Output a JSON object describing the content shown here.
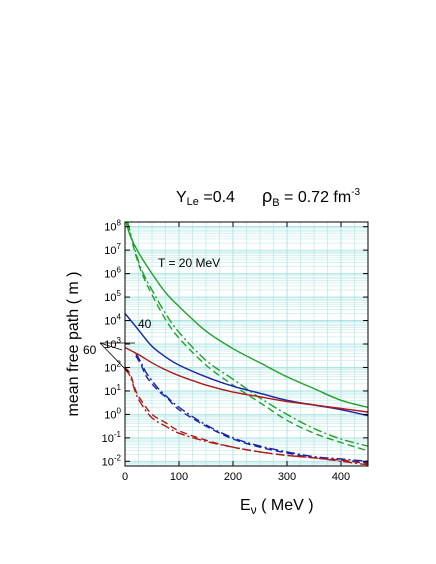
{
  "chart_data": {
    "type": "line",
    "title_parts": {
      "ye_symbol": "Y",
      "ye_sub": "Le",
      "ye_value": " =0.4",
      "rho_symbol": "ρ",
      "rho_sub": "B",
      "rho_value": " = 0.72 fm",
      "rho_exp": "-3"
    },
    "xlabel": {
      "symbol": "E",
      "sub": "ν",
      "unit": " ( MeV )"
    },
    "ylabel": "mean free path ( m )",
    "xlim": [
      0,
      450
    ],
    "ylim_log10": [
      -2.2,
      8.2
    ],
    "y_scale": "log",
    "grid": true,
    "x_ticks": [
      {
        "value": 0,
        "label": "0"
      },
      {
        "value": 100,
        "label": "100"
      },
      {
        "value": 200,
        "label": "200"
      },
      {
        "value": 300,
        "label": "300"
      },
      {
        "value": 400,
        "label": "400"
      }
    ],
    "y_ticks": [
      {
        "exp": -2,
        "base": "10",
        "sup": "-2"
      },
      {
        "exp": -1,
        "base": "10",
        "sup": "-1"
      },
      {
        "exp": 0,
        "base": "10",
        "sup": "0"
      },
      {
        "exp": 1,
        "base": "10",
        "sup": "1"
      },
      {
        "exp": 2,
        "base": "10",
        "sup": "2"
      },
      {
        "exp": 3,
        "base": "10",
        "sup": "3"
      },
      {
        "exp": 4,
        "base": "10",
        "sup": "4"
      },
      {
        "exp": 5,
        "base": "10",
        "sup": "5"
      },
      {
        "exp": 6,
        "base": "10",
        "sup": "6"
      },
      {
        "exp": 7,
        "base": "10",
        "sup": "7"
      },
      {
        "exp": 8,
        "base": "10",
        "sup": "8"
      }
    ],
    "annotations": {
      "t20": "T = 20 MeV",
      "t40": "40",
      "t60": "60"
    },
    "colors": {
      "T20": "#22a02a",
      "T40": "#1a22a6",
      "T60": "#b01818",
      "grid": "#9fe0e0"
    },
    "series": [
      {
        "group": "T20",
        "style": "solid",
        "color": "#22a02a",
        "x": [
          2,
          10,
          25,
          50,
          75,
          100,
          150,
          200,
          250,
          300,
          350,
          400,
          450
        ],
        "log10_y": [
          8.2,
          7.6,
          6.9,
          6.0,
          5.2,
          4.6,
          3.55,
          2.8,
          2.2,
          1.6,
          1.1,
          0.6,
          0.3
        ]
      },
      {
        "group": "T20",
        "style": "dashed",
        "color": "#22a02a",
        "x": [
          5,
          15,
          30,
          50,
          75,
          100,
          150,
          200,
          250,
          300,
          350,
          400,
          450
        ],
        "log10_y": [
          8.2,
          7.2,
          6.1,
          5.1,
          4.05,
          3.25,
          2.1,
          1.25,
          0.5,
          -0.25,
          -0.8,
          -1.2,
          -1.55
        ]
      },
      {
        "group": "T20",
        "style": "dashdot",
        "color": "#22a02a",
        "x": [
          5,
          15,
          30,
          50,
          75,
          100,
          150,
          200,
          250,
          300,
          350,
          400,
          450
        ],
        "log10_y": [
          8.2,
          7.3,
          6.2,
          5.3,
          4.3,
          3.5,
          2.3,
          1.5,
          0.7,
          0.0,
          -0.6,
          -1.05,
          -1.35
        ]
      },
      {
        "group": "T40",
        "style": "solid",
        "color": "#1a22a6",
        "x": [
          0,
          25,
          50,
          75,
          100,
          150,
          200,
          250,
          300,
          350,
          400,
          450
        ],
        "log10_y": [
          4.3,
          3.6,
          2.9,
          2.45,
          2.1,
          1.6,
          1.2,
          0.9,
          0.6,
          0.4,
          0.2,
          -0.05
        ]
      },
      {
        "group": "T40",
        "style": "dashed",
        "color": "#1a22a6",
        "x": [
          20,
          30,
          40,
          60,
          80,
          100,
          150,
          200,
          250,
          300,
          350,
          400,
          450
        ],
        "log10_y": [
          2.5,
          2.1,
          1.6,
          1.05,
          0.65,
          0.2,
          -0.5,
          -1.05,
          -1.4,
          -1.65,
          -1.85,
          -1.95,
          -2.05
        ]
      },
      {
        "group": "T40",
        "style": "dashdot",
        "color": "#1a22a6",
        "x": [
          20,
          30,
          40,
          60,
          80,
          100,
          150,
          200,
          250,
          300,
          350,
          400,
          450
        ],
        "log10_y": [
          2.6,
          2.2,
          1.75,
          1.15,
          0.7,
          0.3,
          -0.45,
          -1.0,
          -1.35,
          -1.6,
          -1.8,
          -1.9,
          -2.0
        ]
      },
      {
        "group": "T60",
        "style": "solid",
        "color": "#b01818",
        "x": [
          0,
          25,
          50,
          75,
          100,
          150,
          200,
          250,
          300,
          350,
          400,
          450
        ],
        "log10_y": [
          2.85,
          2.55,
          2.2,
          1.9,
          1.65,
          1.25,
          0.95,
          0.75,
          0.55,
          0.4,
          0.25,
          0.1
        ]
      },
      {
        "group": "T60",
        "style": "dashed",
        "color": "#b01818",
        "x": [
          0,
          10,
          20,
          30,
          50,
          75,
          100,
          150,
          200,
          250,
          300,
          350,
          400,
          450
        ],
        "log10_y": [
          2.0,
          1.7,
          1.0,
          0.6,
          0.0,
          -0.35,
          -0.7,
          -1.1,
          -1.4,
          -1.6,
          -1.75,
          -1.85,
          -1.95,
          -2.1
        ]
      },
      {
        "group": "T60",
        "style": "dashdot",
        "color": "#b01818",
        "x": [
          0,
          10,
          20,
          30,
          50,
          75,
          100,
          150,
          200,
          250,
          300,
          350,
          400,
          450
        ],
        "log10_y": [
          1.95,
          1.6,
          0.9,
          0.45,
          -0.15,
          -0.5,
          -0.8,
          -1.15,
          -1.4,
          -1.6,
          -1.75,
          -1.85,
          -2.0,
          -2.15
        ]
      }
    ]
  }
}
